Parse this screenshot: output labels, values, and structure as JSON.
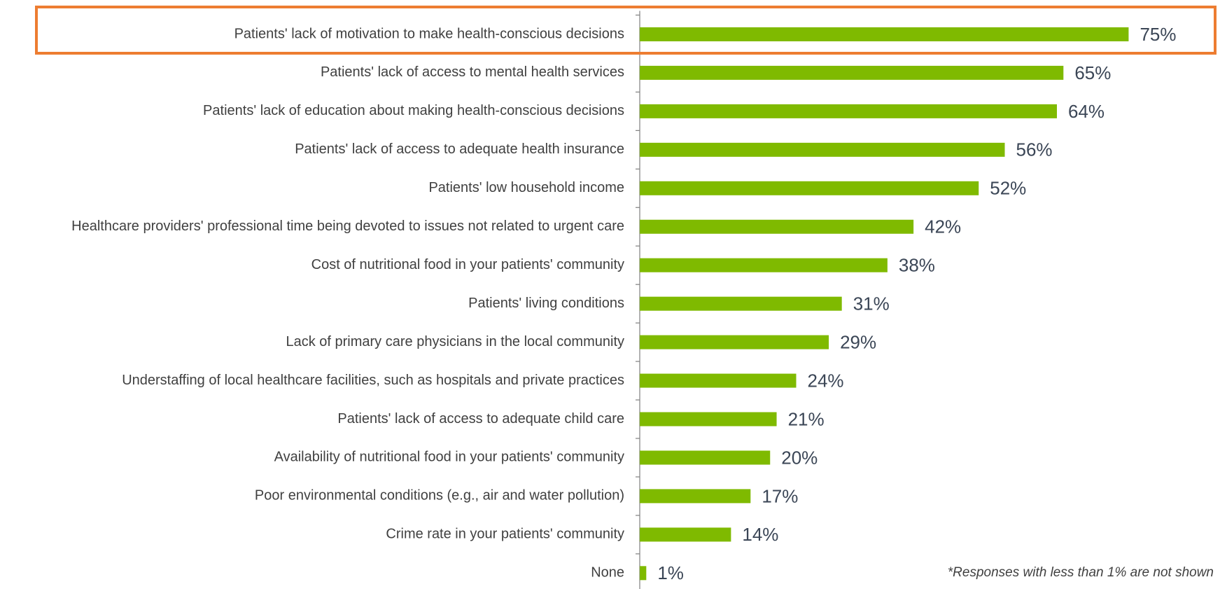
{
  "chart_data": {
    "type": "barh",
    "categories": [
      "Patients' lack of motivation to make health-conscious decisions",
      "Patients' lack of access to mental health services",
      "Patients' lack of education about making health-conscious decisions",
      "Patients' lack of access to adequate health insurance",
      "Patients' low household income",
      "Healthcare providers' professional time being devoted to issues not related to urgent care",
      "Cost of nutritional food in your patients' community",
      "Patients' living conditions",
      "Lack of primary care physicians in the local community",
      "Understaffing of local healthcare facilities, such as hospitals and private practices",
      "Patients' lack of access to adequate child care",
      "Availability of nutritional food in your patients' community",
      "Poor environmental conditions (e.g., air and water pollution)",
      "Crime rate in your patients' community",
      "None"
    ],
    "values": [
      75,
      65,
      64,
      56,
      52,
      42,
      38,
      31,
      29,
      24,
      21,
      20,
      17,
      14,
      1
    ],
    "value_labels": [
      "75%",
      "65%",
      "64%",
      "56%",
      "52%",
      "42%",
      "38%",
      "31%",
      "29%",
      "24%",
      "21%",
      "20%",
      "17%",
      "14%",
      "1%"
    ],
    "color": "#7fba00",
    "xlim": [
      0,
      80
    ],
    "highlight_color": "#ed7d31",
    "annotation": "*Responses with less than 1% are not shown"
  }
}
